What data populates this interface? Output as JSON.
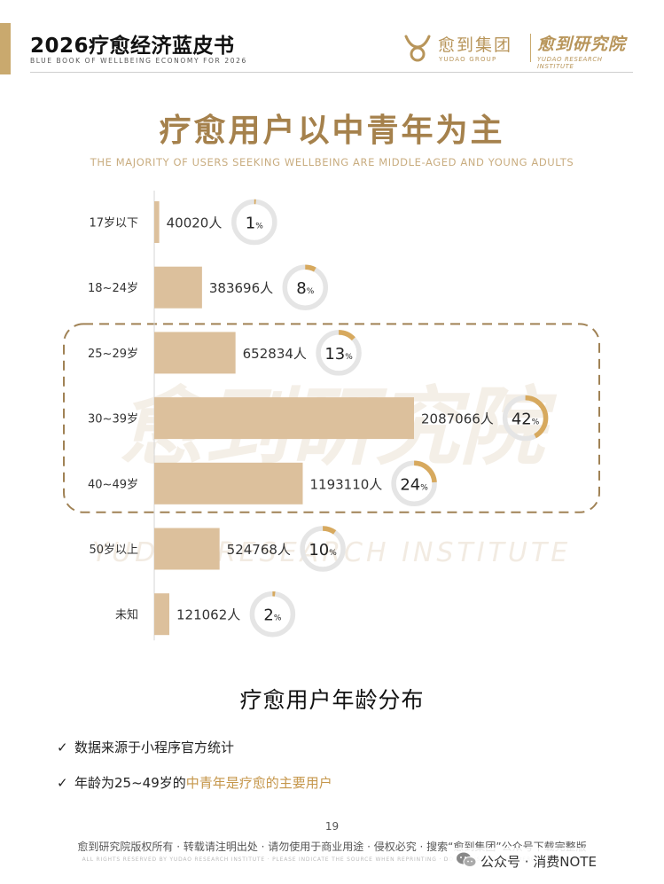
{
  "header": {
    "title": "2026疗愈经济蓝皮书",
    "subtitle": "BLUE BOOK OF WELLBEING ECONOMY FOR 2026",
    "logo_group_name": "愈到集团",
    "logo_group_en": "YUDAO GROUP",
    "logo_institute_name": "愈到研究院",
    "logo_institute_en": "YUDAO RESEARCH INSTITUTE"
  },
  "headline": {
    "title": "疗愈用户以中青年为主",
    "subtitle": "THE MAJORITY OF USERS SEEKING WELLBEING ARE MIDDLE-AGED AND YOUNG ADULTS"
  },
  "chart_data": {
    "type": "bar",
    "orientation": "horizontal",
    "title": "疗愈用户年龄分布",
    "categories": [
      "17岁以下",
      "18~24岁",
      "25~29岁",
      "30~39岁",
      "40~49岁",
      "50岁以上",
      "未知"
    ],
    "values": [
      40020,
      383696,
      652834,
      2087066,
      1193110,
      524768,
      121062
    ],
    "value_labels": [
      "40020人",
      "383696人",
      "652834人",
      "2087066人",
      "1193110人",
      "524768人",
      "121062人"
    ],
    "percentages": [
      1,
      8,
      13,
      42,
      24,
      10,
      2
    ],
    "percent_unit": "%",
    "highlighted_categories": [
      "25~29岁",
      "30~39岁",
      "40~49岁"
    ],
    "bar_color": "#dcc09c",
    "ring_color": "#d7a95e",
    "ring_track_color": "#e5e5e5",
    "highlight_border_color": "#a08255"
  },
  "watermark": {
    "text": "愈到研究院",
    "text_en": "YUDAO RESEARCH INSTITUTE"
  },
  "notes": [
    {
      "prefix": "数据来源于小程序官方统计",
      "highlight": "",
      "suffix": ""
    },
    {
      "prefix": "年龄为25~49岁的",
      "highlight": "中青年是疗愈的主要用户",
      "suffix": ""
    }
  ],
  "check_symbol": "✓",
  "footer": {
    "page_number": "19",
    "copyright": "愈到研究院版权所有 · 转载请注明出处 · 请勿使用于商业用途 · 侵权必究 · 搜索“愈到集团”公众号下载完整版",
    "copyright_en": "ALL RIGHTS RESERVED BY YUDAO RESEARCH INSTITUTE · PLEASE INDICATE THE SOURCE WHEN REPRINTING · DO NOT USE FOR COMMERCIAL PURPOSES"
  },
  "wechat_badge": {
    "text": "公众号 · 消费NOTE",
    "icon": "wechat-icon"
  }
}
